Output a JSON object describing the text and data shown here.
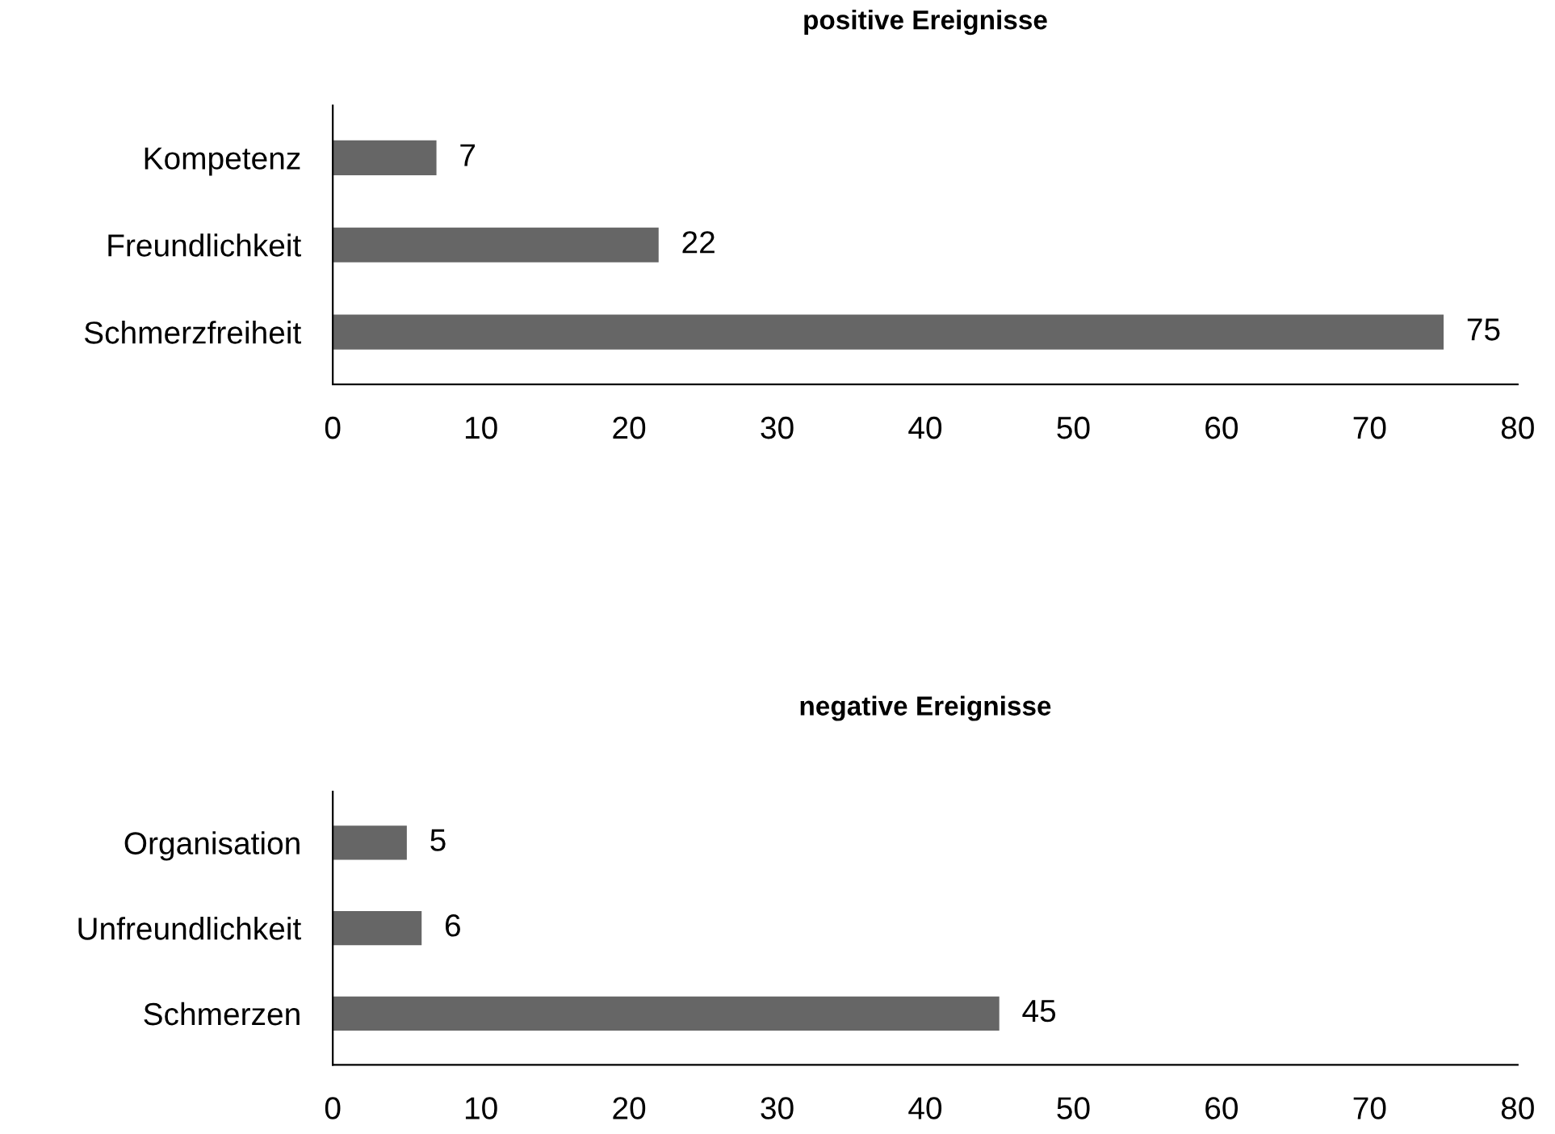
{
  "chart_data": [
    {
      "type": "bar",
      "orientation": "horizontal",
      "title": "positive Ereignisse",
      "categories": [
        "Kompetenz",
        "Freundlichkeit",
        "Schmerzfreiheit"
      ],
      "values": [
        7,
        22,
        75
      ],
      "color": "#666666",
      "xlim": [
        0,
        80
      ],
      "xticks": [
        0,
        10,
        20,
        30,
        40,
        50,
        60,
        70,
        80
      ],
      "data_labels": true,
      "grid": false
    },
    {
      "type": "bar",
      "orientation": "horizontal",
      "title": "negative Ereignisse",
      "categories": [
        "Organisation",
        "Unfreundlichkeit",
        "Schmerzen"
      ],
      "values": [
        5,
        6,
        45
      ],
      "color": "#666666",
      "xlim": [
        0,
        80
      ],
      "xticks": [
        0,
        10,
        20,
        30,
        40,
        50,
        60,
        70,
        80
      ],
      "data_labels": true,
      "grid": false
    }
  ]
}
